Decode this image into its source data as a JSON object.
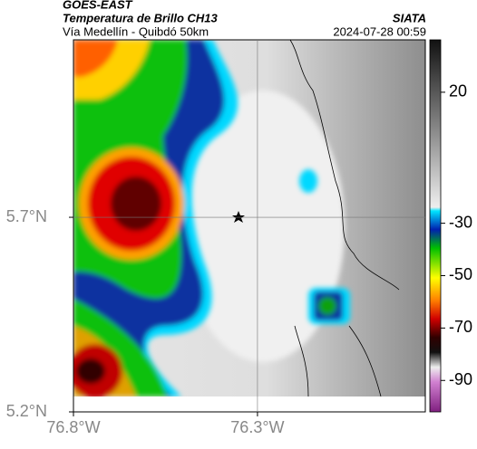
{
  "header": {
    "source": "GOES-EAST",
    "title": "Temperatura de Brillo CH13",
    "subtitle": "Vía Medellín - Quibdó 50km",
    "agency": "SIATA",
    "timestamp": "2024-07-28 00:59"
  },
  "map": {
    "lon_range": [
      -76.8,
      -75.844
    ],
    "lat_range": [
      5.2,
      6.156
    ],
    "lon_ticks": [
      {
        "value": -76.8,
        "label": "76.8°W"
      },
      {
        "value": -76.3,
        "label": "76.3°W"
      }
    ],
    "lat_ticks": [
      {
        "value": 5.7,
        "label": "5.7°N"
      },
      {
        "value": 5.2,
        "label": "5.2°N"
      }
    ],
    "grid": true
  },
  "colorbar": {
    "range": [
      -102,
      40
    ],
    "ticks": [
      20,
      -30,
      -50,
      -70,
      -90
    ]
  }
}
